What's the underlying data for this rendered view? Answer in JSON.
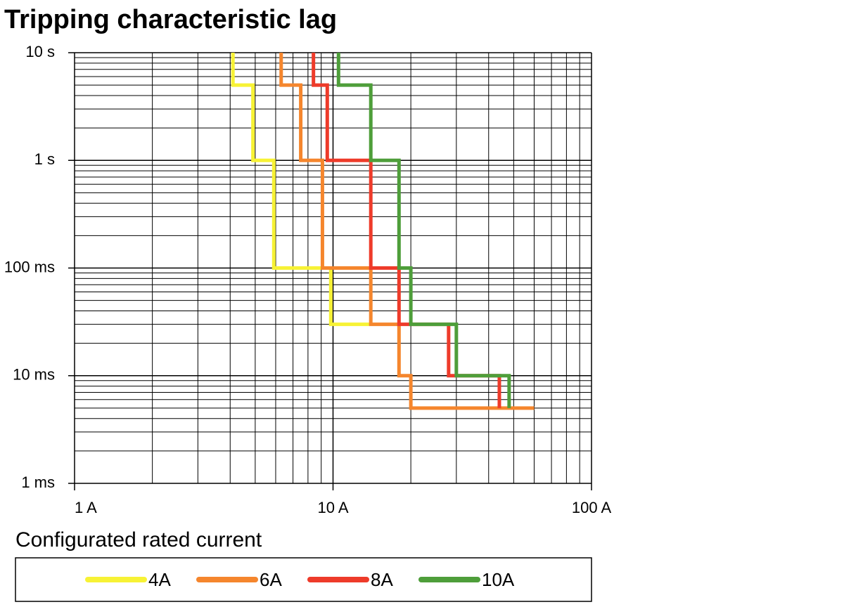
{
  "chart_data": {
    "type": "line",
    "title": "Tripping characteristic lag",
    "legend_title": "Configurated rated current",
    "xscale": "log",
    "yscale": "log",
    "xlim": [
      1,
      100
    ],
    "ylim": [
      0.001,
      10
    ],
    "xticks": [
      {
        "value": 1,
        "label": "1 A"
      },
      {
        "value": 10,
        "label": "10 A"
      },
      {
        "value": 100,
        "label": "100 A"
      }
    ],
    "yticks": [
      {
        "value": 10,
        "label": "10 s"
      },
      {
        "value": 1,
        "label": "1 s"
      },
      {
        "value": 0.1,
        "label": "100 ms"
      },
      {
        "value": 0.01,
        "label": "10 ms"
      },
      {
        "value": 0.001,
        "label": "1 ms"
      }
    ],
    "xminorticks": [
      2,
      3,
      4,
      5,
      6,
      7,
      8,
      9,
      20,
      30,
      40,
      50,
      60,
      70,
      80,
      90
    ],
    "yminorticks": [
      0.002,
      0.003,
      0.004,
      0.005,
      0.006,
      0.007,
      0.008,
      0.009,
      0.02,
      0.03,
      0.04,
      0.05,
      0.06,
      0.07,
      0.08,
      0.09,
      0.2,
      0.3,
      0.4,
      0.5,
      0.6,
      0.7,
      0.8,
      0.9,
      2,
      3,
      4,
      5,
      6,
      7,
      8,
      9
    ],
    "grid": true,
    "series": [
      {
        "name": "4A",
        "color": "#f7f235",
        "x": [
          4.1,
          4.1,
          4.9,
          4.9,
          5.9,
          5.9,
          9.8,
          9.8,
          13.8
        ],
        "values": [
          10,
          5,
          5,
          1,
          1,
          0.1,
          0.1,
          0.03,
          0.03
        ]
      },
      {
        "name": "6A",
        "color": "#f5862d",
        "x": [
          6.3,
          6.3,
          7.5,
          7.5,
          9.1,
          9.1,
          14,
          14,
          18,
          18,
          20,
          20,
          60
        ],
        "values": [
          10,
          5,
          5,
          1,
          1,
          0.1,
          0.1,
          0.03,
          0.03,
          0.01,
          0.01,
          0.005,
          0.005
        ]
      },
      {
        "name": "8A",
        "color": "#ee3b2a",
        "x": [
          8.4,
          8.4,
          9.5,
          9.5,
          14,
          14,
          18,
          18,
          28,
          28,
          44,
          44
        ],
        "values": [
          10,
          5,
          5,
          1,
          1,
          0.1,
          0.1,
          0.03,
          0.03,
          0.01,
          0.01,
          0.005
        ]
      },
      {
        "name": "10A",
        "color": "#4e9e3a",
        "x": [
          10.5,
          10.5,
          14,
          14,
          18,
          18,
          20,
          20,
          30,
          30,
          48,
          48
        ],
        "values": [
          10,
          5,
          5,
          1,
          1,
          0.1,
          0.1,
          0.03,
          0.03,
          0.01,
          0.01,
          0.005
        ]
      }
    ]
  }
}
